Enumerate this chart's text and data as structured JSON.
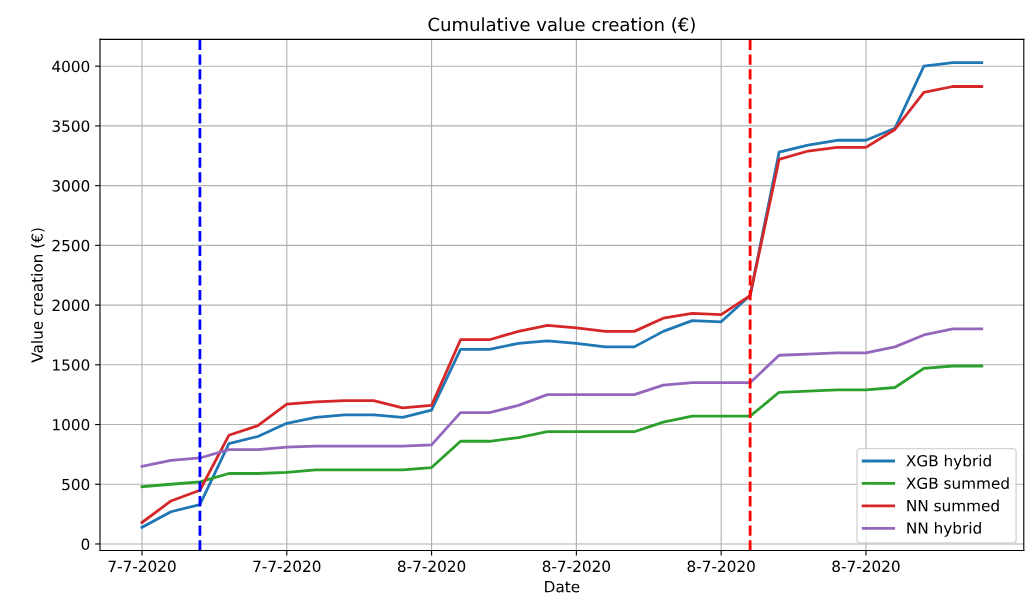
{
  "chart_data": {
    "type": "line",
    "title": "Cumulative value creation (€)",
    "xlabel": "Date",
    "ylabel": "Value creation (€)",
    "categories": [
      "7-7-2020",
      null,
      null,
      null,
      null,
      "7-7-2020",
      null,
      null,
      null,
      null,
      "8-7-2020",
      null,
      null,
      null,
      null,
      "8-7-2020",
      null,
      null,
      null,
      null,
      "8-7-2020",
      null,
      null,
      null,
      null,
      "8-7-2020",
      null,
      null,
      null,
      null
    ],
    "series": [
      {
        "name": "XGB hybrid",
        "color": "#1f77b4",
        "values": [
          140,
          270,
          330,
          840,
          900,
          1010,
          1060,
          1080,
          1080,
          1060,
          1120,
          1630,
          1630,
          1680,
          1700,
          1680,
          1650,
          1650,
          1780,
          1870,
          1860,
          2080,
          3280,
          3340,
          3380,
          3380,
          3480,
          4000,
          4030,
          4030
        ]
      },
      {
        "name": "XGB summed",
        "color": "#2ca02c",
        "values": [
          480,
          500,
          520,
          590,
          590,
          600,
          620,
          620,
          620,
          620,
          640,
          860,
          860,
          890,
          940,
          940,
          940,
          940,
          1020,
          1070,
          1070,
          1070,
          1270,
          1280,
          1290,
          1290,
          1310,
          1470,
          1490,
          1490
        ]
      },
      {
        "name": "NN summed",
        "color": "#d62728",
        "values": [
          180,
          360,
          450,
          910,
          990,
          1170,
          1190,
          1200,
          1200,
          1140,
          1160,
          1710,
          1710,
          1780,
          1830,
          1810,
          1780,
          1780,
          1890,
          1930,
          1920,
          2080,
          3220,
          3290,
          3320,
          3320,
          3470,
          3780,
          3830,
          3830
        ]
      },
      {
        "name": "NN hybrid",
        "color": "#9467bd",
        "values": [
          650,
          700,
          720,
          790,
          790,
          810,
          820,
          820,
          820,
          820,
          830,
          1100,
          1100,
          1160,
          1250,
          1250,
          1250,
          1250,
          1330,
          1350,
          1350,
          1350,
          1580,
          1590,
          1600,
          1600,
          1650,
          1750,
          1800,
          1800
        ]
      }
    ],
    "ylim": [
      -55,
      4225
    ],
    "yticks": [
      0,
      500,
      1000,
      1500,
      2000,
      2500,
      3000,
      3500,
      4000
    ],
    "grid": true,
    "legend": "lower right",
    "marker": "none",
    "line_style": "solid"
  }
}
